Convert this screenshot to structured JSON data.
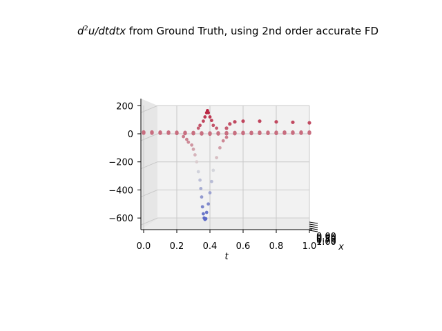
{
  "chart_data": {
    "type": "scatter",
    "projection": "3d",
    "title": {
      "prefix": "d",
      "sup": "2",
      "rest": "u/dtdtx",
      "suffix": " from Ground Truth, using 2nd order accurate FD"
    },
    "xlabel": "t",
    "ylabel": "x",
    "zlabel": "",
    "xlim": [
      0,
      1
    ],
    "zlim": [
      -700,
      230
    ],
    "xticks": [
      "0.0",
      "0.2",
      "0.4",
      "0.6",
      "0.8",
      "1.0"
    ],
    "zticks": [
      "200",
      "0",
      "−200",
      "−400",
      "−600"
    ],
    "yticks_collapsed": [
      "0.00",
      "0.25",
      "0.50",
      "0.75",
      "1.00"
    ],
    "grid": true,
    "colormap": "coolwarm",
    "colors": {
      "low": "#3b4cc0",
      "mid": "#dddddd",
      "high": "#b40426"
    },
    "series": [
      {
        "description": "dense curves near zero",
        "points": [
          [
            0.0,
            5
          ],
          [
            0.05,
            5
          ],
          [
            0.1,
            4
          ],
          [
            0.15,
            4
          ],
          [
            0.2,
            3
          ],
          [
            0.25,
            2
          ],
          [
            0.3,
            1
          ],
          [
            0.35,
            -1
          ],
          [
            0.4,
            -2
          ],
          [
            0.45,
            -1
          ],
          [
            0.5,
            0
          ],
          [
            0.55,
            1
          ],
          [
            0.6,
            2
          ],
          [
            0.65,
            2
          ],
          [
            0.7,
            3
          ],
          [
            0.75,
            3
          ],
          [
            0.8,
            3
          ],
          [
            0.85,
            4
          ],
          [
            0.9,
            4
          ],
          [
            0.95,
            4
          ],
          [
            1.0,
            4
          ]
        ]
      }
    ],
    "peak_points": [
      [
        0.36,
        90
      ],
      [
        0.37,
        120
      ],
      [
        0.38,
        150
      ],
      [
        0.385,
        165
      ],
      [
        0.39,
        150
      ],
      [
        0.4,
        120
      ],
      [
        0.41,
        95
      ],
      [
        0.34,
        60
      ],
      [
        0.42,
        60
      ],
      [
        0.33,
        40
      ],
      [
        0.44,
        40
      ]
    ],
    "trough_points": [
      [
        0.24,
        -20
      ],
      [
        0.26,
        -40
      ],
      [
        0.27,
        -60
      ],
      [
        0.29,
        -80
      ],
      [
        0.3,
        -110
      ],
      [
        0.31,
        -150
      ],
      [
        0.32,
        -200
      ],
      [
        0.33,
        -270
      ],
      [
        0.34,
        -330
      ],
      [
        0.345,
        -390
      ],
      [
        0.35,
        -450
      ],
      [
        0.355,
        -520
      ],
      [
        0.36,
        -570
      ],
      [
        0.365,
        -600
      ],
      [
        0.37,
        -610
      ],
      [
        0.375,
        -605
      ],
      [
        0.38,
        -560
      ],
      [
        0.39,
        -500
      ],
      [
        0.4,
        -420
      ],
      [
        0.41,
        -340
      ],
      [
        0.42,
        -260
      ],
      [
        0.44,
        -170
      ],
      [
        0.46,
        -100
      ],
      [
        0.48,
        -50
      ],
      [
        0.5,
        -25
      ]
    ],
    "upper_curve": [
      [
        0.5,
        40
      ],
      [
        0.52,
        70
      ],
      [
        0.55,
        85
      ],
      [
        0.6,
        90
      ],
      [
        0.7,
        90
      ],
      [
        0.8,
        85
      ],
      [
        0.9,
        82
      ],
      [
        1.0,
        78
      ]
    ]
  }
}
